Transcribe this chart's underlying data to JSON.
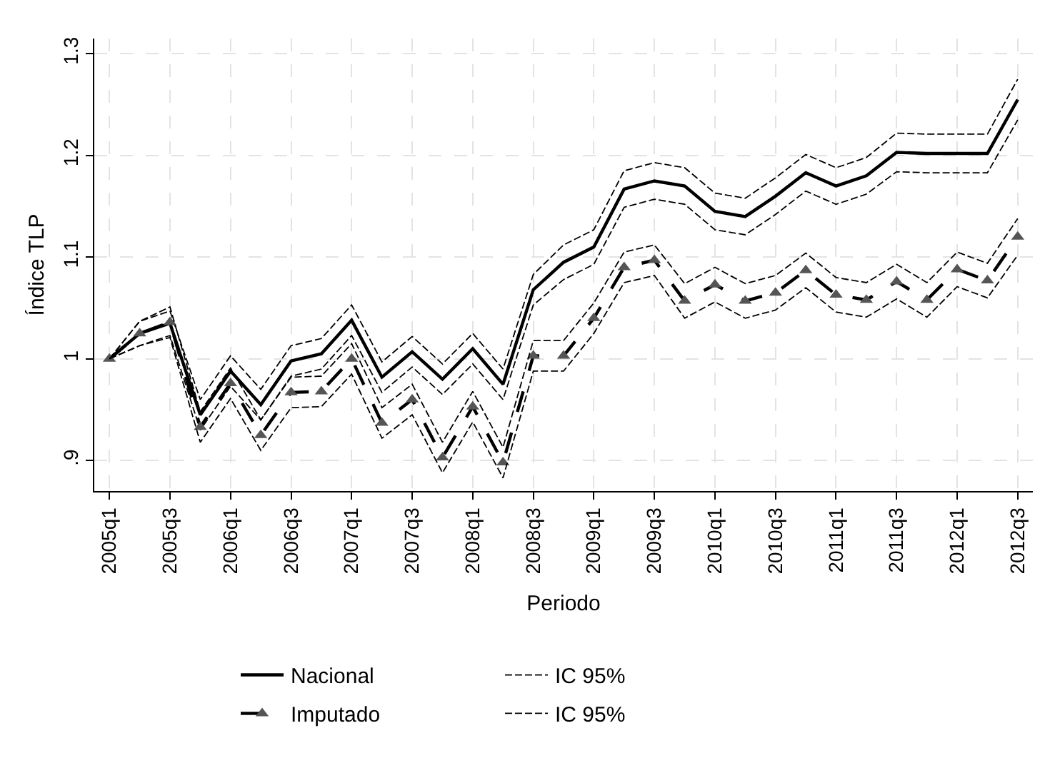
{
  "chart_data": {
    "type": "line",
    "xlabel": "Periodo",
    "ylabel": "Índice TLP",
    "categories": [
      "2005q1",
      null,
      "2005q3",
      null,
      "2006q1",
      null,
      "2006q3",
      null,
      "2007q1",
      null,
      "2007q3",
      null,
      "2008q1",
      null,
      "2008q3",
      null,
      "2009q1",
      null,
      "2009q3",
      null,
      "2010q1",
      null,
      "2010q3",
      null,
      "2011q1",
      null,
      "2011q3",
      null,
      "2012q1",
      null,
      "2012q3"
    ],
    "ylim": [
      0.87,
      1.315
    ],
    "yticks": [
      {
        "value": 0.9,
        "label": ".9"
      },
      1,
      1.1,
      1.2,
      1.3
    ],
    "grid": true,
    "legend": "bottom",
    "series": [
      {
        "name": "Nacional",
        "color": "#000000",
        "line_style": "solid",
        "marker": "none",
        "values": [
          1.0,
          1.025,
          1.035,
          0.945,
          0.988,
          0.955,
          0.998,
          1.005,
          1.038,
          0.982,
          1.007,
          0.98,
          1.01,
          0.975,
          1.068,
          1.095,
          1.11,
          1.167,
          1.175,
          1.17,
          1.145,
          1.14,
          1.16,
          1.183,
          1.17,
          1.18,
          1.203,
          1.202,
          1.202,
          1.202,
          1.255
        ]
      },
      {
        "name": "IC 95%",
        "color": "#000000",
        "line_style": "dashed",
        "marker": "none",
        "values": [
          1.0,
          1.037,
          1.047,
          0.96,
          1.003,
          0.97,
          1.013,
          1.02,
          1.053,
          0.997,
          1.022,
          0.995,
          1.025,
          0.99,
          1.083,
          1.112,
          1.127,
          1.185,
          1.193,
          1.188,
          1.163,
          1.158,
          1.178,
          1.201,
          1.188,
          1.198,
          1.222,
          1.221,
          1.221,
          1.221,
          1.275
        ]
      },
      {
        "color": "#000000",
        "line_style": "dashed",
        "marker": "none",
        "values": [
          1.0,
          1.013,
          1.023,
          0.93,
          0.973,
          0.94,
          0.983,
          0.99,
          1.023,
          0.967,
          0.992,
          0.965,
          0.995,
          0.96,
          1.053,
          1.078,
          1.093,
          1.149,
          1.157,
          1.152,
          1.127,
          1.122,
          1.142,
          1.165,
          1.152,
          1.162,
          1.184,
          1.183,
          1.183,
          1.183,
          1.235
        ]
      },
      {
        "name": "Imputado",
        "color": "#000000",
        "line_style": "dashed",
        "marker": "triangle",
        "values": [
          1.0,
          1.025,
          1.036,
          0.933,
          0.976,
          0.925,
          0.967,
          0.968,
          1.0,
          0.937,
          0.96,
          0.903,
          0.953,
          0.898,
          1.003,
          1.003,
          1.04,
          1.09,
          1.097,
          1.057,
          1.073,
          1.057,
          1.065,
          1.087,
          1.063,
          1.058,
          1.076,
          1.058,
          1.088,
          1.077,
          1.12
        ]
      },
      {
        "name": "IC 95%",
        "color": "#000000",
        "line_style": "dashed",
        "marker": "none",
        "values": [
          1.0,
          1.037,
          1.051,
          0.948,
          0.991,
          0.94,
          0.982,
          0.983,
          1.015,
          0.952,
          0.975,
          0.918,
          0.968,
          0.913,
          1.018,
          1.018,
          1.055,
          1.105,
          1.112,
          1.074,
          1.09,
          1.074,
          1.082,
          1.104,
          1.08,
          1.075,
          1.093,
          1.075,
          1.105,
          1.094,
          1.138
        ]
      },
      {
        "color": "#000000",
        "line_style": "dashed",
        "marker": "none",
        "values": [
          1.0,
          1.013,
          1.021,
          0.918,
          0.961,
          0.91,
          0.952,
          0.953,
          0.985,
          0.922,
          0.945,
          0.888,
          0.938,
          0.883,
          0.988,
          0.988,
          1.025,
          1.075,
          1.082,
          1.04,
          1.056,
          1.04,
          1.048,
          1.07,
          1.046,
          1.041,
          1.059,
          1.041,
          1.071,
          1.06,
          1.102
        ]
      }
    ]
  }
}
